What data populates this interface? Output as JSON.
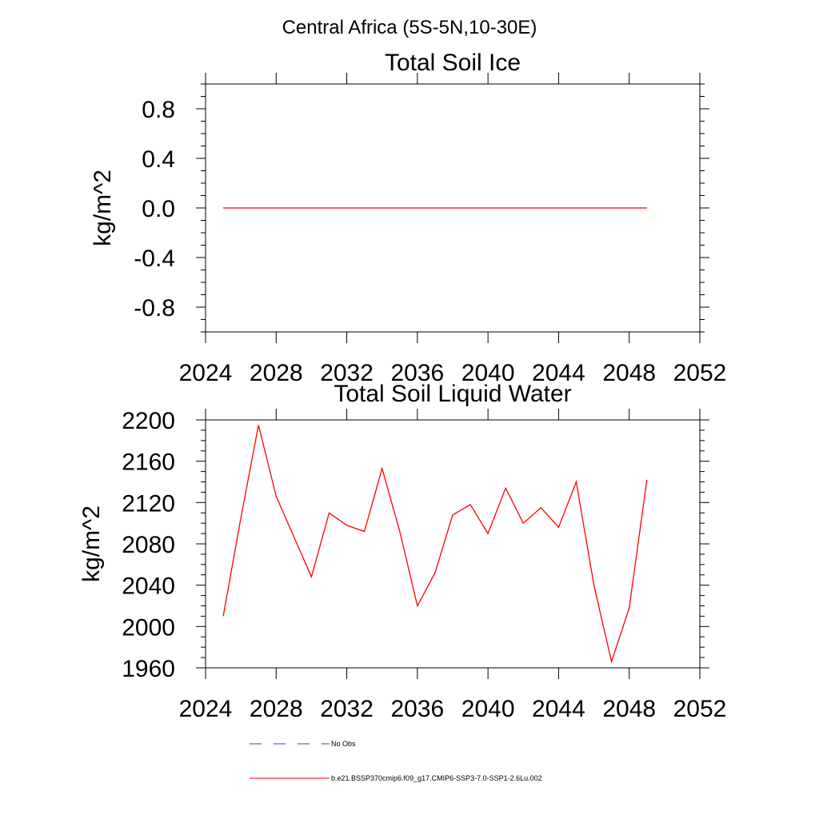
{
  "page_title": "Central Africa (5S-5N,10-30E)",
  "colors": {
    "series": "#ff0000",
    "no_obs": "#3f3faf",
    "axes": "#000000"
  },
  "legend": [
    {
      "label": "No Obs",
      "style": "dashed",
      "color": "#3f3faf"
    },
    {
      "label": "b.e21.BSSP370cmip6.f09_g17.CMIP6-SSP3-7.0-SSP1-2.6Lu.002",
      "style": "solid",
      "color": "#ff0000"
    }
  ],
  "chart_data": [
    {
      "type": "line",
      "title": "Total Soil Ice",
      "ylabel": "kg/m^2",
      "xlim": [
        2024,
        2052
      ],
      "ylim": [
        -1.0,
        1.0
      ],
      "xticks": [
        "2024",
        "2028",
        "2032",
        "2036",
        "2040",
        "2044",
        "2048",
        "2052"
      ],
      "yticks": [
        "-0.8",
        "-0.4",
        "0.0",
        "0.4",
        "0.8"
      ],
      "x": [
        2025,
        2026,
        2027,
        2028,
        2029,
        2030,
        2031,
        2032,
        2033,
        2034,
        2035,
        2036,
        2037,
        2038,
        2039,
        2040,
        2041,
        2042,
        2043,
        2044,
        2045,
        2046,
        2047,
        2048,
        2049
      ],
      "series": [
        {
          "values": [
            0,
            0,
            0,
            0,
            0,
            0,
            0,
            0,
            0,
            0,
            0,
            0,
            0,
            0,
            0,
            0,
            0,
            0,
            0,
            0,
            0,
            0,
            0,
            0,
            0
          ]
        }
      ]
    },
    {
      "type": "line",
      "title": "Total Soil Liquid Water",
      "ylabel": "kg/m^2",
      "xlim": [
        2024,
        2052
      ],
      "ylim": [
        1960,
        2200
      ],
      "xticks": [
        "2024",
        "2028",
        "2032",
        "2036",
        "2040",
        "2044",
        "2048",
        "2052"
      ],
      "yticks": [
        "1960",
        "2000",
        "2040",
        "2080",
        "2120",
        "2160",
        "2200"
      ],
      "x": [
        2025,
        2026,
        2027,
        2028,
        2029,
        2030,
        2031,
        2032,
        2033,
        2034,
        2035,
        2036,
        2037,
        2038,
        2039,
        2040,
        2041,
        2042,
        2043,
        2044,
        2045,
        2046,
        2047,
        2048,
        2049
      ],
      "series": [
        {
          "values": [
            2010,
            2105,
            2195,
            2126,
            2087,
            2048,
            2110,
            2098,
            2092,
            2153,
            2092,
            2020,
            2052,
            2108,
            2118,
            2090,
            2134,
            2100,
            2115,
            2096,
            2140,
            2040,
            1966,
            2018,
            2142
          ]
        }
      ]
    }
  ]
}
